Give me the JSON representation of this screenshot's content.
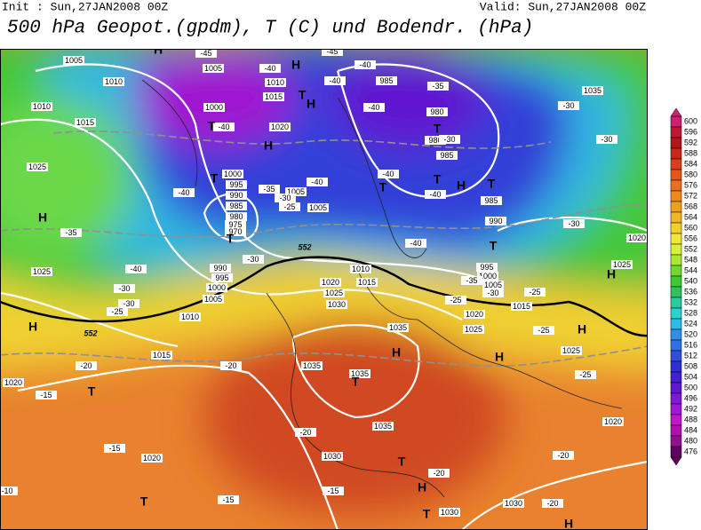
{
  "header": {
    "init": "Init : Sun,27JAN2008 00Z",
    "valid": "Valid: Sun,27JAN2008 00Z",
    "title": "500 hPa Geopot.(gpdm), T (C) und Bodendr. (hPa)"
  },
  "colorbar": {
    "ticks": [
      600,
      596,
      592,
      588,
      584,
      580,
      576,
      572,
      568,
      564,
      560,
      556,
      552,
      548,
      544,
      540,
      536,
      532,
      528,
      524,
      520,
      516,
      512,
      508,
      504,
      500,
      496,
      492,
      488,
      484,
      480,
      476
    ],
    "colors": [
      "#d02070",
      "#c01830",
      "#b01818",
      "#c82818",
      "#d84018",
      "#e05818",
      "#e87020",
      "#f08820",
      "#f0a020",
      "#f0b828",
      "#f0d030",
      "#f0e838",
      "#d8f040",
      "#a8e838",
      "#70d830",
      "#40c830",
      "#30c060",
      "#30c8a0",
      "#30d0d0",
      "#30b8e8",
      "#3090e8",
      "#3070e0",
      "#3050d8",
      "#3030d0",
      "#4020d0",
      "#6018d0",
      "#8018d0",
      "#a018d0",
      "#c018c8",
      "#b010b0",
      "#901090",
      "#600060"
    ]
  },
  "map": {
    "isobar_labels": [
      1005,
      1010,
      1010,
      1015,
      1025,
      1025,
      1005,
      1010,
      1015,
      1000,
      1020,
      985,
      980,
      980,
      985,
      1000,
      995,
      990,
      985,
      980,
      975,
      970,
      1005,
      1005,
      990,
      985,
      995,
      1000,
      1005,
      990,
      995,
      1000,
      1005,
      1010,
      1015,
      1020,
      1025,
      1030,
      1010,
      1015,
      1020,
      1035,
      1035,
      1035,
      1035,
      1030,
      1020,
      1030,
      1030,
      1020,
      1025,
      1015,
      1025,
      1020,
      1025,
      1020,
      1035
    ],
    "temperature_labels": [
      -45,
      -40,
      -40,
      -45,
      -40,
      -35,
      -40,
      -30,
      -40,
      -40,
      -35,
      -30,
      -25,
      -40,
      -40,
      -40,
      -40,
      -35,
      -30,
      -25,
      -25,
      -25,
      -25,
      -35,
      -40,
      -30,
      -30,
      -25,
      -30,
      -30,
      -30,
      -20,
      -15,
      -20,
      -20,
      -15,
      -10,
      -15,
      -15,
      -20,
      -20,
      -20,
      -30
    ],
    "height_labels": [
      552,
      552
    ],
    "pressure_centers": [
      "H",
      "H",
      "T",
      "H",
      "T",
      "H",
      "T",
      "T",
      "H",
      "T",
      "T",
      "T",
      "H",
      "T",
      "T",
      "H",
      "H",
      "T",
      "H",
      "H",
      "H",
      "T",
      "T",
      "H",
      "T",
      "H",
      "T"
    ]
  }
}
